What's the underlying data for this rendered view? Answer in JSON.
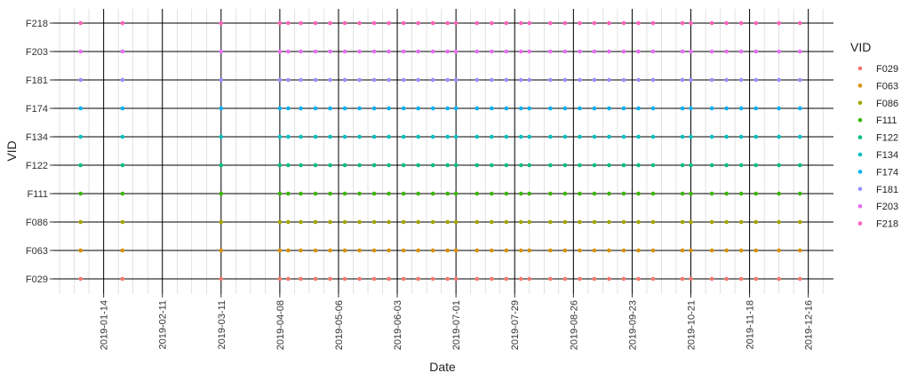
{
  "chart_data": {
    "type": "scatter",
    "title": "",
    "xlabel": "Date",
    "ylabel": "VID",
    "x_axis": {
      "type": "date",
      "range": [
        "2018-12-21",
        "2019-12-28"
      ],
      "ticks": [
        "2019-01-14",
        "2019-02-11",
        "2019-03-11",
        "2019-04-08",
        "2019-05-06",
        "2019-06-03",
        "2019-07-01",
        "2019-07-29",
        "2019-08-26",
        "2019-09-23",
        "2019-10-21",
        "2019-11-18",
        "2019-12-16"
      ],
      "minor_grid": "weekly",
      "tick_label_rotation": 90
    },
    "categories": [
      "F029",
      "F063",
      "F086",
      "F111",
      "F122",
      "F134",
      "F174",
      "F181",
      "F203",
      "F218"
    ],
    "x": [
      "2019-01-03",
      "2019-01-23",
      "2019-03-11",
      "2019-04-08",
      "2019-04-12",
      "2019-04-18",
      "2019-04-25",
      "2019-05-02",
      "2019-05-09",
      "2019-05-16",
      "2019-05-23",
      "2019-05-30",
      "2019-06-06",
      "2019-06-13",
      "2019-06-20",
      "2019-06-27",
      "2019-07-01",
      "2019-07-11",
      "2019-07-18",
      "2019-07-25",
      "2019-08-01",
      "2019-08-05",
      "2019-08-15",
      "2019-08-22",
      "2019-08-29",
      "2019-09-05",
      "2019-09-12",
      "2019-09-19",
      "2019-09-26",
      "2019-10-03",
      "2019-10-17",
      "2019-10-21",
      "2019-10-31",
      "2019-11-07",
      "2019-11-14",
      "2019-11-21",
      "2019-12-02",
      "2019-12-12"
    ],
    "series": [
      {
        "name": "F029",
        "color": "#F8766D"
      },
      {
        "name": "F063",
        "color": "#D89000"
      },
      {
        "name": "F086",
        "color": "#A3A500"
      },
      {
        "name": "F111",
        "color": "#39B600"
      },
      {
        "name": "F122",
        "color": "#00BF7D"
      },
      {
        "name": "F134",
        "color": "#00BFC4"
      },
      {
        "name": "F174",
        "color": "#00B0F6"
      },
      {
        "name": "F181",
        "color": "#9590FF"
      },
      {
        "name": "F203",
        "color": "#E76BF3"
      },
      {
        "name": "F218",
        "color": "#FF62BC"
      }
    ],
    "grid": true,
    "legend": {
      "title": "VID",
      "position": "right"
    }
  }
}
